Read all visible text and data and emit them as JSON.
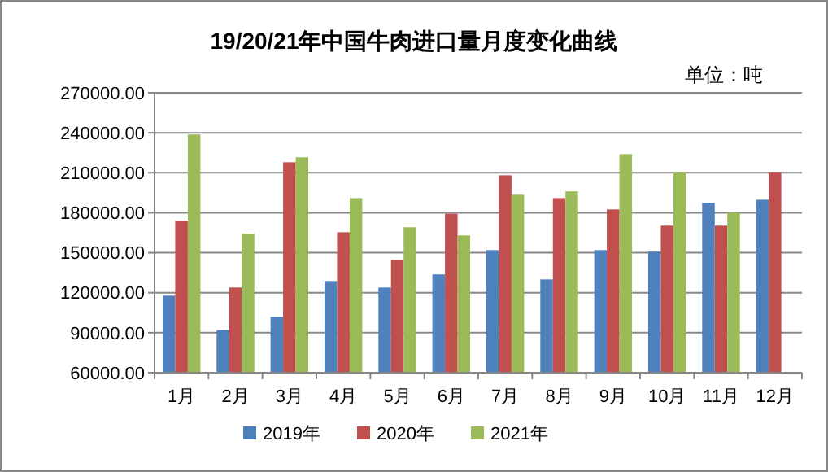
{
  "chart_data": {
    "type": "bar",
    "title": "19/20/21年中国牛肉进口量月度变化曲线",
    "annotations": [
      "单位：吨"
    ],
    "categories": [
      "1月",
      "2月",
      "3月",
      "4月",
      "5月",
      "6月",
      "7月",
      "8月",
      "9月",
      "10月",
      "11月",
      "12月"
    ],
    "series": [
      {
        "name": "2019年",
        "color": "#4f81bd",
        "values": [
          117800,
          92000,
          101900,
          128800,
          123900,
          133700,
          152000,
          130000,
          152000,
          150800,
          187400,
          189800
        ]
      },
      {
        "name": "2020年",
        "color": "#c0504d",
        "values": [
          174000,
          123900,
          217900,
          165400,
          144700,
          179300,
          208100,
          191000,
          182500,
          170300,
          170300,
          210600
        ]
      },
      {
        "name": "2021年",
        "color": "#9bbb59",
        "values": [
          238700,
          164200,
          221600,
          191000,
          169100,
          163000,
          193500,
          196000,
          224000,
          210600,
          180100,
          null
        ]
      }
    ],
    "ylim": [
      60000,
      270000
    ],
    "yticks": [
      {
        "value": 60000,
        "label": "60000.00"
      },
      {
        "value": 90000,
        "label": "90000.00"
      },
      {
        "value": 120000,
        "label": "120000.00"
      },
      {
        "value": 150000,
        "label": "150000.00"
      },
      {
        "value": 180000,
        "label": "180000.00"
      },
      {
        "value": 210000,
        "label": "210000.00"
      },
      {
        "value": 240000,
        "label": "240000.00"
      },
      {
        "value": 270000,
        "label": "270000.00"
      }
    ],
    "grid": "y",
    "legend": "bottom"
  }
}
